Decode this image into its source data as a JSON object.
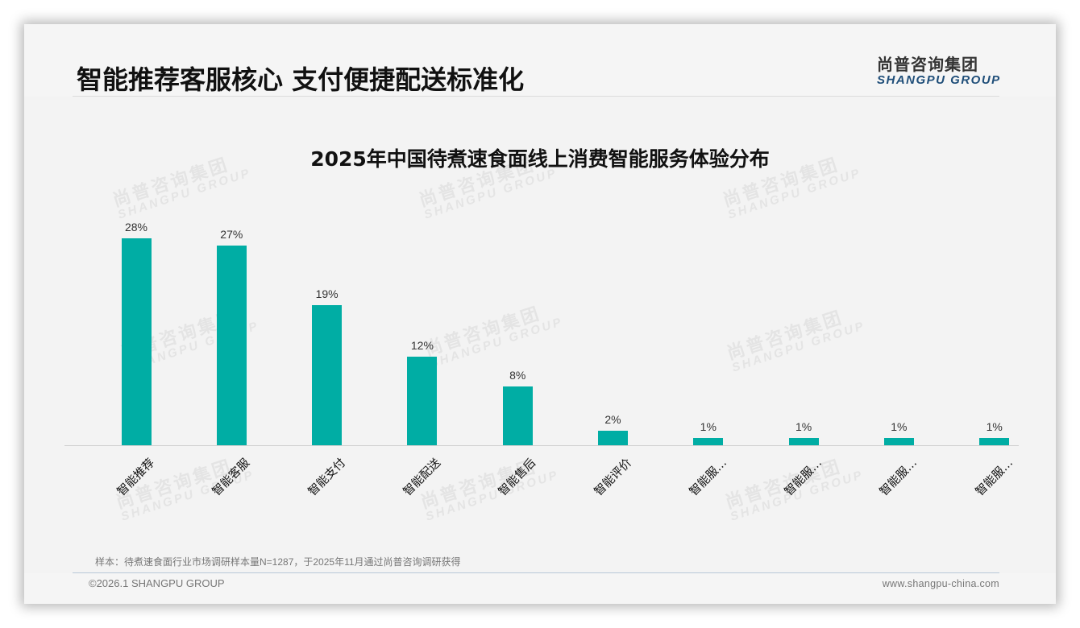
{
  "header": {
    "title": "智能推荐客服核心 支付便捷配送标准化",
    "logo_cn": "尚普咨询集团",
    "logo_en": "SHANGPU GROUP"
  },
  "watermark": {
    "cn": "尚普咨询集团",
    "en": "SHANGPU GROUP"
  },
  "colors": {
    "bar": "#00ada4",
    "accent_logo": "#1f4e79"
  },
  "chart_data": {
    "type": "bar",
    "title": "2025年中国待煮速食面线上消费智能服务体验分布",
    "categories": [
      "智能推荐",
      "智能客服",
      "智能支付",
      "智能配送",
      "智能售后",
      "智能评价",
      "智能服…",
      "智能服…",
      "智能服…",
      "智能服…"
    ],
    "values": [
      28,
      27,
      19,
      12,
      8,
      2,
      1,
      1,
      1,
      1
    ],
    "value_labels": [
      "28%",
      "27%",
      "19%",
      "12%",
      "8%",
      "2%",
      "1%",
      "1%",
      "1%",
      "1%"
    ],
    "xlabel": "",
    "ylabel": "",
    "unit": "%",
    "ylim": [
      0,
      30
    ],
    "grid": false,
    "legend": null,
    "x_label_rotation": -45
  },
  "footer": {
    "note": "样本：待煮速食面行业市场调研样本量N=1287，于2025年11月通过尚普咨询调研获得",
    "copyright": "©2026.1 SHANGPU GROUP",
    "website": "www.shangpu-china.com"
  }
}
